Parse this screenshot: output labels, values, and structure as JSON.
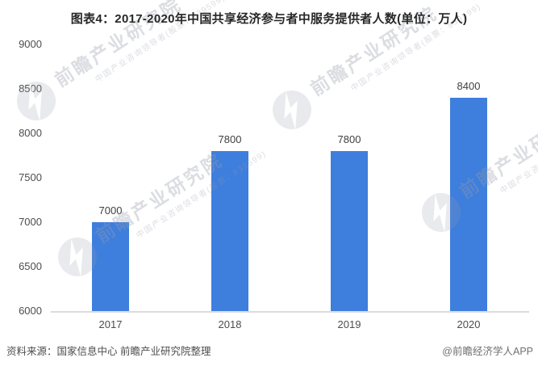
{
  "title": "图表4：2017-2020年中国共享经济参与者中服务提供者人数(单位：万人)",
  "chart_data": {
    "type": "bar",
    "title": "图表4：2017-2020年中国共享经济参与者中服务提供者人数(单位：万人)",
    "categories": [
      "2017",
      "2018",
      "2019",
      "2020"
    ],
    "values": [
      7000,
      7800,
      7800,
      8400
    ],
    "data_labels": [
      "7000",
      "7800",
      "7800",
      "8400"
    ],
    "unit": "万人",
    "xlabel": "",
    "ylabel": "",
    "ylim": [
      6000,
      9000
    ],
    "yticks": [
      6000,
      6500,
      7000,
      7500,
      8000,
      8500,
      9000
    ],
    "grid": false,
    "legend_position": "none",
    "bar_color": "#3e7edd"
  },
  "footer": {
    "source": "资料来源：国家信息中心 前瞻产业研究院整理",
    "credit": "@前瞻经济学人APP"
  },
  "watermark": {
    "text_large": "前瞻产业研究院",
    "text_small": "中国产业咨询领导者(股票：839599)",
    "color": "#969baa"
  }
}
